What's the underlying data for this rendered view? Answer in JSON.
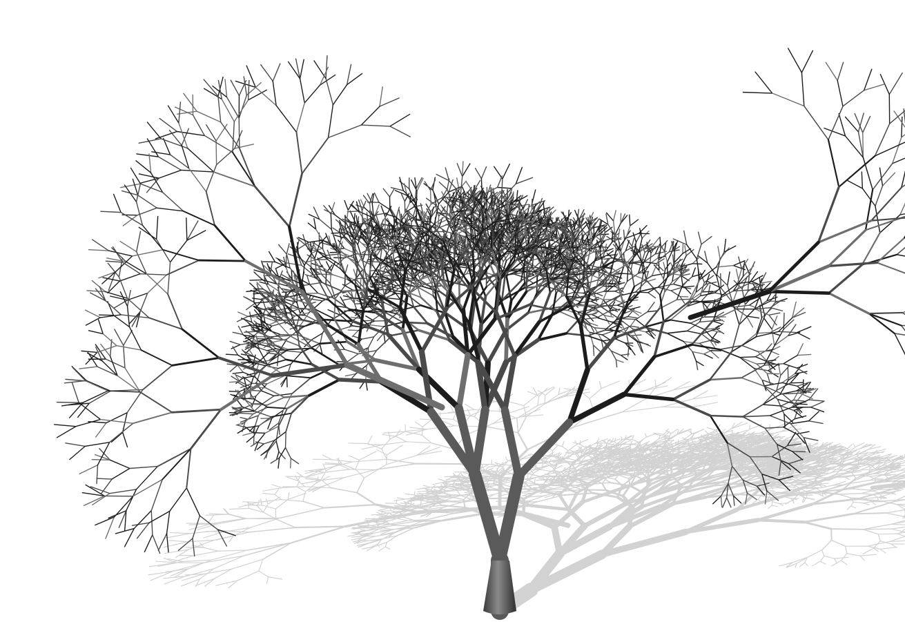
{
  "scene": {
    "subject": "fractal-tree",
    "render_style": "grayscale-3d",
    "colors": {
      "background": "#ffffff",
      "branch_dark": "#1c1c1c",
      "branch_mid": "#4a4a4a",
      "branch_light": "#6e6e6e",
      "trunk": "#5a5a5a",
      "shadow": "#c4c4c4"
    },
    "structure": {
      "trunk_count": 1,
      "primary_split": 2,
      "branching_factor": 2,
      "depth": 10,
      "shadow_direction": "right"
    }
  }
}
